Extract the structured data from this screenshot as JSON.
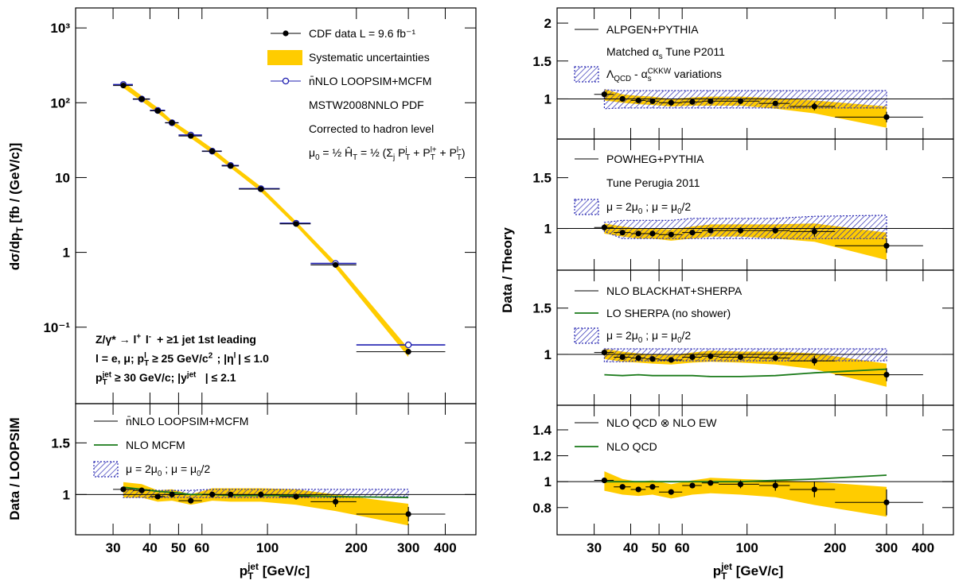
{
  "chart_data": [
    {
      "type": "scatter",
      "log_x": true,
      "log_y": true,
      "ylabel": [
        "dσ/dp",
        {
          "sub": "T"
        },
        "  [fb / (GeV/c)]"
      ],
      "xlim": [
        22.4,
        508
      ],
      "ylim": [
        0.0095,
        1850
      ],
      "yticks": [
        {
          "value": 0.1,
          "label": "10⁻¹"
        },
        1,
        10,
        {
          "value": 100,
          "label": "10²"
        },
        {
          "value": 1000,
          "label": "10³"
        }
      ],
      "x": [
        32.5,
        37.5,
        42.5,
        47.5,
        55,
        65,
        75,
        95,
        125,
        170,
        300
      ],
      "bins": [
        30,
        35,
        40,
        45,
        50,
        60,
        70,
        80,
        110,
        140,
        200,
        400
      ],
      "series": [
        {
          "name": "CDF data  L =  9.6 fb⁻¹",
          "style": "points",
          "color": "#000000",
          "values": [
            170,
            112,
            78,
            54,
            36,
            22.5,
            14.3,
            7.0,
            2.4,
            0.68,
            0.047
          ],
          "errors": [
            4,
            2.5,
            1.5,
            1,
            0.7,
            0.4,
            0.3,
            0.15,
            0.06,
            0.02,
            0.004
          ]
        },
        {
          "name": "Systematic uncertainties",
          "style": "band",
          "color": "#ffcc00",
          "low": [
            158,
            105,
            73,
            51,
            33.5,
            21,
            13.5,
            6.5,
            2.25,
            0.62,
            0.04
          ],
          "high": [
            190,
            124,
            86,
            58,
            39,
            24.5,
            15.5,
            7.6,
            2.6,
            0.74,
            0.052
          ]
        },
        {
          "name": "n̄NLO LOOPSIM+MCFM",
          "style": "open_points",
          "color": "#1f1fb0",
          "values": [
            175,
            112,
            79,
            54,
            37,
            22.5,
            14.5,
            7.1,
            2.45,
            0.71,
            0.058
          ]
        }
      ],
      "legend_notes": [
        "MSTW2008NNLO PDF",
        "Corrected to hadron level",
        [
          "μ",
          {
            "sub": "0"
          },
          " = ½ Ĥ",
          {
            "sub": "T"
          },
          " = ½ (Σ",
          {
            "sub": "j"
          },
          " P",
          {
            "sub": "T",
            "sup": "j"
          },
          " + P",
          {
            "sub": "T",
            "sup": "l+"
          },
          " + P",
          {
            "sub": "T",
            "sup": "l-"
          },
          ")"
        ]
      ],
      "annotations": [
        [
          "Z/γ* → l",
          {
            "sup": "+"
          },
          "l",
          {
            "sup": "-"
          },
          " + ≥1 jet 1st leading"
        ],
        [
          "l = e, μ;  p",
          {
            "sub": "T",
            "sup": "l"
          },
          " ≥ 25 GeV/c",
          {
            "sup": "2"
          },
          "; |η",
          {
            "sup": "l"
          },
          "| ≤ 1.0"
        ],
        [
          "p",
          {
            "sub": "T",
            "sup": "jet"
          },
          " ≥ 30 GeV/c; |y",
          {
            "sup": "jet"
          },
          "| ≤ 2.1"
        ]
      ]
    },
    {
      "type": "ratio",
      "log_x": true,
      "ylabel": "Data / LOOPSIM",
      "xlabel": [
        "p",
        {
          "sub": "T",
          "sup": "jet"
        },
        "  [GeV/c]"
      ],
      "xlim": [
        22.4,
        508
      ],
      "ylim": [
        0.61,
        1.88
      ],
      "yticks": [
        1,
        1.5
      ],
      "xticks": [
        30,
        40,
        50,
        60,
        100,
        200,
        300,
        400
      ],
      "x": [
        32.5,
        37.5,
        42.5,
        47.5,
        55,
        65,
        75,
        95,
        125,
        170,
        300
      ],
      "bins": [
        30,
        35,
        40,
        45,
        50,
        60,
        70,
        80,
        110,
        140,
        200,
        400
      ],
      "series": [
        {
          "name": "n̄NLO LOOPSIM+MCFM",
          "style": "reference",
          "color": "#000000",
          "value": 1
        },
        {
          "name": "NLO MCFM",
          "style": "line",
          "color": "#1a7a1a",
          "values": [
            1.07,
            1.05,
            1.03,
            1.02,
            1.0,
            1.0,
            0.99,
            0.99,
            0.99,
            0.98,
            0.97
          ]
        },
        {
          "name": [
            "μ = 2μ",
            {
              "sub": "0"
            },
            " ; μ = μ",
            {
              "sub": "0"
            },
            "/2"
          ],
          "style": "hatch",
          "color": "#2c2cb4",
          "low": [
            0.97,
            0.97,
            0.97,
            0.97,
            0.97,
            0.97,
            0.97,
            0.97,
            0.97,
            0.97,
            0.98
          ],
          "high": [
            1.05,
            1.05,
            1.04,
            1.04,
            1.04,
            1.05,
            1.05,
            1.05,
            1.05,
            1.05,
            1.05
          ]
        },
        {
          "style": "band",
          "color": "#ffcc00",
          "low": [
            0.97,
            0.97,
            0.93,
            0.94,
            0.9,
            0.94,
            0.93,
            0.93,
            0.9,
            0.84,
            0.7
          ],
          "high": [
            1.12,
            1.1,
            1.04,
            1.05,
            1.0,
            1.06,
            1.06,
            1.06,
            1.05,
            1.0,
            0.91
          ]
        },
        {
          "style": "points",
          "color": "#000000",
          "values": [
            1.05,
            1.04,
            0.98,
            1.0,
            0.94,
            1.0,
            1.0,
            1.0,
            0.98,
            0.93,
            0.81
          ],
          "errors": [
            0.02,
            0.02,
            0.02,
            0.02,
            0.02,
            0.02,
            0.02,
            0.03,
            0.03,
            0.05,
            0.07
          ]
        }
      ]
    },
    {
      "type": "ratio",
      "log_x": true,
      "ylabel": "Data / Theory",
      "xlim": [
        22.4,
        508
      ],
      "ylim": [
        0.47,
        2.2
      ],
      "yticks": [
        1,
        1.5,
        2
      ],
      "x": [
        32.5,
        37.5,
        42.5,
        47.5,
        55,
        65,
        75,
        95,
        125,
        170,
        300
      ],
      "bins": [
        30,
        35,
        40,
        45,
        50,
        60,
        70,
        80,
        110,
        140,
        200,
        400
      ],
      "series": [
        {
          "name": "ALPGEN+PYTHIA",
          "style": "reference",
          "color": "#000000",
          "value": 1
        },
        {
          "name": [
            "Λ",
            {
              "sub": "QCD"
            },
            " - α",
            {
              "sub": "s",
              "sup": "CKKW"
            },
            " variations"
          ],
          "style": "hatch",
          "color": "#2c2cb4",
          "low": [
            0.87,
            0.88,
            0.88,
            0.88,
            0.88,
            0.88,
            0.88,
            0.88,
            0.88,
            0.88,
            0.88
          ],
          "high": [
            1.12,
            1.11,
            1.11,
            1.11,
            1.11,
            1.11,
            1.11,
            1.11,
            1.11,
            1.11,
            1.11
          ]
        },
        {
          "style": "band",
          "color": "#ffcc00",
          "low": [
            0.98,
            0.95,
            0.93,
            0.92,
            0.9,
            0.91,
            0.91,
            0.91,
            0.87,
            0.81,
            0.62
          ],
          "high": [
            1.13,
            1.06,
            1.04,
            1.03,
            1.0,
            1.02,
            1.03,
            1.03,
            1.01,
            0.98,
            0.9
          ]
        },
        {
          "style": "points",
          "color": "#000000",
          "values": [
            1.06,
            1.0,
            0.98,
            0.97,
            0.95,
            0.96,
            0.97,
            0.97,
            0.94,
            0.9,
            0.76
          ],
          "errors": [
            0.02,
            0.02,
            0.02,
            0.02,
            0.02,
            0.02,
            0.02,
            0.03,
            0.03,
            0.05,
            0.07
          ]
        }
      ],
      "legend_notes": [
        [
          "Matched α",
          {
            "sub": "s"
          },
          " Tune P2011"
        ]
      ]
    },
    {
      "type": "ratio",
      "log_x": true,
      "xlim": [
        22.4,
        508
      ],
      "ylim": [
        0.59,
        1.88
      ],
      "yticks": [
        1,
        1.5
      ],
      "x": [
        32.5,
        37.5,
        42.5,
        47.5,
        55,
        65,
        75,
        95,
        125,
        170,
        300
      ],
      "bins": [
        30,
        35,
        40,
        45,
        50,
        60,
        70,
        80,
        110,
        140,
        200,
        400
      ],
      "series": [
        {
          "name": "POWHEG+PYTHIA",
          "style": "reference",
          "color": "#000000",
          "value": 1
        },
        {
          "name": [
            "μ = 2μ",
            {
              "sub": "0"
            },
            " ; μ = μ",
            {
              "sub": "0"
            },
            "/2"
          ],
          "style": "hatch",
          "color": "#2c2cb4",
          "low": [
            0.97,
            0.9,
            0.9,
            0.9,
            0.9,
            0.9,
            0.9,
            0.9,
            0.9,
            0.9,
            0.9
          ],
          "high": [
            1.06,
            1.08,
            1.08,
            1.08,
            1.08,
            1.1,
            1.1,
            1.1,
            1.1,
            1.12,
            1.13
          ]
        },
        {
          "style": "band",
          "color": "#ffcc00",
          "low": [
            0.95,
            0.92,
            0.9,
            0.9,
            0.88,
            0.9,
            0.92,
            0.92,
            0.9,
            0.87,
            0.69
          ],
          "high": [
            1.05,
            1.02,
            1.0,
            1.0,
            0.99,
            1.02,
            1.04,
            1.04,
            1.04,
            1.05,
            0.96
          ]
        },
        {
          "style": "points",
          "color": "#000000",
          "values": [
            1.01,
            0.96,
            0.95,
            0.95,
            0.94,
            0.96,
            0.98,
            0.98,
            0.98,
            0.97,
            0.83
          ],
          "errors": [
            0.02,
            0.02,
            0.02,
            0.02,
            0.02,
            0.02,
            0.02,
            0.03,
            0.03,
            0.05,
            0.07
          ]
        }
      ],
      "legend_notes": [
        "Tune Perugia 2011"
      ]
    },
    {
      "type": "ratio",
      "log_x": true,
      "xlim": [
        22.4,
        508
      ],
      "ylim": [
        0.45,
        1.91
      ],
      "yticks": [
        1,
        1.5
      ],
      "x": [
        32.5,
        37.5,
        42.5,
        47.5,
        55,
        65,
        75,
        95,
        125,
        170,
        300
      ],
      "bins": [
        30,
        35,
        40,
        45,
        50,
        60,
        70,
        80,
        110,
        140,
        200,
        400
      ],
      "series": [
        {
          "name": "NLO BLACKHAT+SHERPA",
          "style": "reference",
          "color": "#000000",
          "value": 1
        },
        {
          "name": "LO SHERPA (no shower)",
          "style": "line",
          "color": "#1a7a1a",
          "values": [
            0.78,
            0.77,
            0.78,
            0.77,
            0.77,
            0.77,
            0.76,
            0.76,
            0.77,
            0.8,
            0.84
          ]
        },
        {
          "name": [
            "μ = 2μ",
            {
              "sub": "0"
            },
            " ; μ = μ",
            {
              "sub": "0"
            },
            "/2"
          ],
          "style": "hatch",
          "color": "#2c2cb4",
          "low": [
            0.92,
            0.92,
            0.93,
            0.93,
            0.93,
            0.93,
            0.93,
            0.93,
            0.93,
            0.93,
            0.93
          ],
          "high": [
            1.06,
            1.06,
            1.06,
            1.06,
            1.06,
            1.06,
            1.06,
            1.06,
            1.06,
            1.06,
            1.06
          ]
        },
        {
          "style": "band",
          "color": "#ffcc00",
          "low": [
            0.95,
            0.92,
            0.91,
            0.9,
            0.89,
            0.91,
            0.92,
            0.91,
            0.89,
            0.84,
            0.65
          ],
          "high": [
            1.06,
            1.03,
            1.01,
            1.0,
            0.99,
            1.02,
            1.04,
            1.03,
            1.03,
            1.01,
            0.9
          ]
        },
        {
          "style": "points",
          "color": "#000000",
          "values": [
            1.02,
            0.97,
            0.96,
            0.95,
            0.94,
            0.97,
            0.98,
            0.97,
            0.96,
            0.93,
            0.78
          ],
          "errors": [
            0.02,
            0.02,
            0.02,
            0.02,
            0.02,
            0.02,
            0.02,
            0.03,
            0.03,
            0.05,
            0.07
          ]
        }
      ]
    },
    {
      "type": "ratio",
      "log_x": true,
      "xlabel": [
        "p",
        {
          "sub": "T",
          "sup": "jet"
        },
        "  [GeV/c]"
      ],
      "xlim": [
        22.4,
        508
      ],
      "ylim": [
        0.59,
        1.59
      ],
      "yticks": [
        0.8,
        1,
        1.2,
        1.4
      ],
      "xticks": [
        30,
        40,
        50,
        60,
        100,
        200,
        300,
        400
      ],
      "x": [
        32.5,
        37.5,
        42.5,
        47.5,
        55,
        65,
        75,
        95,
        125,
        170,
        300
      ],
      "bins": [
        30,
        35,
        40,
        45,
        50,
        60,
        70,
        80,
        110,
        140,
        200,
        400
      ],
      "series": [
        {
          "name": "NLO QCD ⊗ NLO EW",
          "style": "reference",
          "color": "#000000",
          "value": 1
        },
        {
          "name": "NLO QCD",
          "style": "line",
          "color": "#1a7a1a",
          "values": [
            1.0,
            1.0,
            1.0,
            1.0,
            1.0,
            1.0,
            1.0,
            1.0,
            1.01,
            1.02,
            1.05
          ]
        },
        {
          "style": "band",
          "color": "#ffcc00",
          "low": [
            0.93,
            0.9,
            0.89,
            0.9,
            0.87,
            0.9,
            0.91,
            0.9,
            0.88,
            0.82,
            0.73
          ],
          "high": [
            1.08,
            1.02,
            1.0,
            1.01,
            0.98,
            1.01,
            1.03,
            1.02,
            1.01,
            1.0,
            0.96
          ]
        },
        {
          "style": "points",
          "color": "#000000",
          "values": [
            1.01,
            0.96,
            0.94,
            0.96,
            0.92,
            0.97,
            0.99,
            0.98,
            0.97,
            0.94,
            0.84
          ],
          "errors": [
            0.01,
            0.01,
            0.01,
            0.01,
            0.02,
            0.02,
            0.02,
            0.03,
            0.04,
            0.06,
            0.1
          ]
        }
      ]
    }
  ]
}
